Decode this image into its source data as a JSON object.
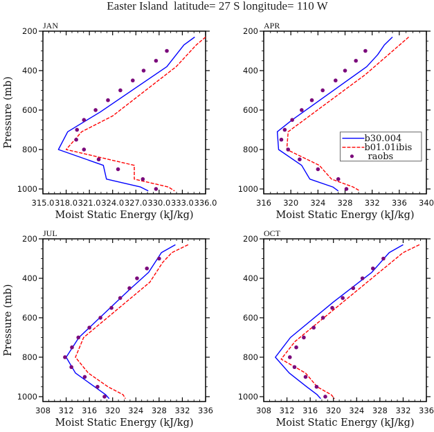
{
  "figure_title": "Easter Island  latitude= 27 S longitude= 110 W",
  "chart_data": [
    {
      "type": "line",
      "panel": "JAN",
      "title": "JAN",
      "xlabel": "Moist Static Energy (kJ/kg)",
      "ylabel": "Pressure (mb)",
      "xlim": [
        315.0,
        336.0
      ],
      "ylim": [
        1000,
        200
      ],
      "xticks": [
        315.0,
        318.0,
        321.0,
        324.0,
        327.0,
        330.0,
        333.0,
        336.0
      ],
      "xtick_labels": [
        "315.0",
        "318.0",
        "321.0",
        "324.0",
        "327.0",
        "330.0",
        "333.0",
        "336.0"
      ],
      "yticks": [
        200,
        400,
        600,
        800,
        1000
      ],
      "ytick_labels": [
        "200",
        "400",
        "600",
        "800",
        "1000"
      ],
      "series": [
        {
          "name": "b30.004",
          "color": "#0000ff",
          "style": "solid",
          "p": [
            230,
            270,
            380,
            610,
            710,
            800,
            880,
            950,
            990,
            1010
          ],
          "x": [
            334.6,
            333.2,
            331.0,
            322.4,
            318.2,
            317.0,
            322.8,
            323.2,
            327.6,
            328.6
          ]
        },
        {
          "name": "b01.01ibis",
          "color": "#ff0000",
          "style": "dashed",
          "p": [
            230,
            270,
            380,
            630,
            710,
            800,
            880,
            950,
            990,
            1010
          ],
          "x": [
            336.0,
            334.8,
            332.2,
            324.0,
            320.0,
            318.0,
            326.8,
            326.8,
            331.2,
            332.0
          ]
        },
        {
          "name": "raobs",
          "color": "#7b0a7b",
          "style": "markers",
          "p": [
            300,
            350,
            400,
            450,
            500,
            550,
            600,
            650,
            700,
            750,
            800,
            850,
            900,
            950,
            1000
          ],
          "x": [
            331.0,
            329.6,
            328.0,
            326.6,
            325.0,
            323.4,
            321.8,
            320.3,
            319.4,
            319.3,
            320.3,
            322.2,
            324.7,
            327.9,
            329.6
          ]
        }
      ]
    },
    {
      "type": "line",
      "panel": "APR",
      "title": "APR",
      "xlabel": "Moist Static Energy (kJ/kg)",
      "ylabel": "",
      "xlim": [
        316,
        340
      ],
      "ylim": [
        1000,
        200
      ],
      "xticks": [
        316,
        320,
        324,
        328,
        332,
        336,
        340
      ],
      "xtick_labels": [
        "316",
        "320",
        "324",
        "328",
        "332",
        "336",
        "340"
      ],
      "yticks": [
        200,
        400,
        600,
        800,
        1000
      ],
      "ytick_labels": [
        "200",
        "400",
        "600",
        "800",
        "1000"
      ],
      "legend": {
        "position": "center-right",
        "entries": [
          "b30.004",
          "b01.01ibis",
          "raobs"
        ]
      },
      "series": [
        {
          "name": "b30.004",
          "color": "#0000ff",
          "style": "solid",
          "p": [
            230,
            270,
            320,
            380,
            650,
            710,
            800,
            880,
            950,
            990,
            1010
          ],
          "x": [
            335.0,
            333.8,
            332.8,
            331.2,
            320.2,
            318.0,
            318.2,
            321.6,
            322.8,
            326.2,
            327.0
          ]
        },
        {
          "name": "b01.01ibis",
          "color": "#ff0000",
          "style": "dashed",
          "p": [
            230,
            420,
            710,
            800,
            880,
            950,
            990,
            1010
          ],
          "x": [
            337.4,
            331.0,
            319.6,
            319.4,
            324.2,
            326.0,
            329.2,
            330.2
          ]
        },
        {
          "name": "raobs",
          "color": "#7b0a7b",
          "style": "markers",
          "p": [
            300,
            350,
            400,
            450,
            500,
            550,
            600,
            650,
            700,
            750,
            800,
            850,
            900,
            950,
            1000
          ],
          "x": [
            331.0,
            329.6,
            328.0,
            326.6,
            324.7,
            323.1,
            321.6,
            320.2,
            319.1,
            318.6,
            319.6,
            321.3,
            324.0,
            327.0,
            328.2
          ]
        }
      ]
    },
    {
      "type": "line",
      "panel": "JUL",
      "title": "JUL",
      "xlabel": "Moist Static Energy (kJ/kg)",
      "ylabel": "Pressure (mb)",
      "xlim": [
        308,
        336
      ],
      "ylim": [
        1000,
        200
      ],
      "xticks": [
        308,
        312,
        316,
        320,
        324,
        328,
        332,
        336
      ],
      "xtick_labels": [
        "308",
        "312",
        "316",
        "320",
        "324",
        "328",
        "332",
        "336"
      ],
      "yticks": [
        200,
        400,
        600,
        800,
        1000
      ],
      "ytick_labels": [
        "200",
        "400",
        "600",
        "800",
        "1000"
      ],
      "series": [
        {
          "name": "b30.004",
          "color": "#0000ff",
          "style": "solid",
          "p": [
            230,
            270,
            370,
            460,
            700,
            800,
            880,
            990,
            1010
          ],
          "x": [
            330.8,
            328.4,
            326.2,
            322.8,
            314.2,
            312.0,
            313.6,
            318.8,
            319.4
          ]
        },
        {
          "name": "b01.01ibis",
          "color": "#ff0000",
          "style": "dashed",
          "p": [
            230,
            270,
            320,
            420,
            700,
            800,
            880,
            950,
            990,
            1010
          ],
          "x": [
            333.0,
            330.2,
            328.6,
            326.4,
            315.0,
            313.6,
            315.8,
            319.2,
            321.8,
            322.2
          ]
        },
        {
          "name": "raobs",
          "color": "#7b0a7b",
          "style": "markers",
          "p": [
            300,
            350,
            400,
            450,
            500,
            550,
            600,
            650,
            700,
            750,
            800,
            850,
            900,
            950,
            1000
          ],
          "x": [
            328.0,
            325.9,
            324.2,
            322.9,
            321.3,
            319.8,
            317.9,
            316.0,
            314.1,
            313.0,
            311.8,
            312.9,
            315.2,
            317.4,
            318.6
          ]
        }
      ]
    },
    {
      "type": "line",
      "panel": "OCT",
      "title": "OCT",
      "xlabel": "Moist Static Energy (kJ/kg)",
      "ylabel": "",
      "xlim": [
        308,
        336
      ],
      "ylim": [
        1000,
        200
      ],
      "xticks": [
        308,
        312,
        316,
        320,
        324,
        328,
        332,
        336
      ],
      "xtick_labels": [
        "308",
        "312",
        "316",
        "320",
        "324",
        "328",
        "332",
        "336"
      ],
      "yticks": [
        200,
        400,
        600,
        800,
        1000
      ],
      "ytick_labels": [
        "200",
        "400",
        "600",
        "800",
        "1000"
      ],
      "series": [
        {
          "name": "b30.004",
          "color": "#0000ff",
          "style": "solid",
          "p": [
            230,
            270,
            370,
            520,
            700,
            800,
            880,
            950,
            990,
            1010
          ],
          "x": [
            332.0,
            329.6,
            326.6,
            320.0,
            312.6,
            310.0,
            312.4,
            315.4,
            317.2,
            317.8
          ]
        },
        {
          "name": "b01.01ibis",
          "color": "#ff0000",
          "style": "dashed",
          "p": [
            230,
            270,
            720,
            810,
            880,
            950,
            990,
            1010
          ],
          "x": [
            334.8,
            332.0,
            313.4,
            311.0,
            315.2,
            317.2,
            319.6,
            320.2
          ]
        },
        {
          "name": "raobs",
          "color": "#7b0a7b",
          "style": "markers",
          "p": [
            300,
            350,
            400,
            450,
            500,
            550,
            600,
            650,
            700,
            750,
            800,
            850,
            900,
            950,
            1000
          ],
          "x": [
            328.6,
            326.8,
            325.0,
            323.4,
            321.6,
            319.8,
            318.2,
            316.6,
            314.9,
            313.6,
            312.5,
            313.3,
            315.2,
            317.1,
            318.6
          ]
        }
      ]
    }
  ]
}
